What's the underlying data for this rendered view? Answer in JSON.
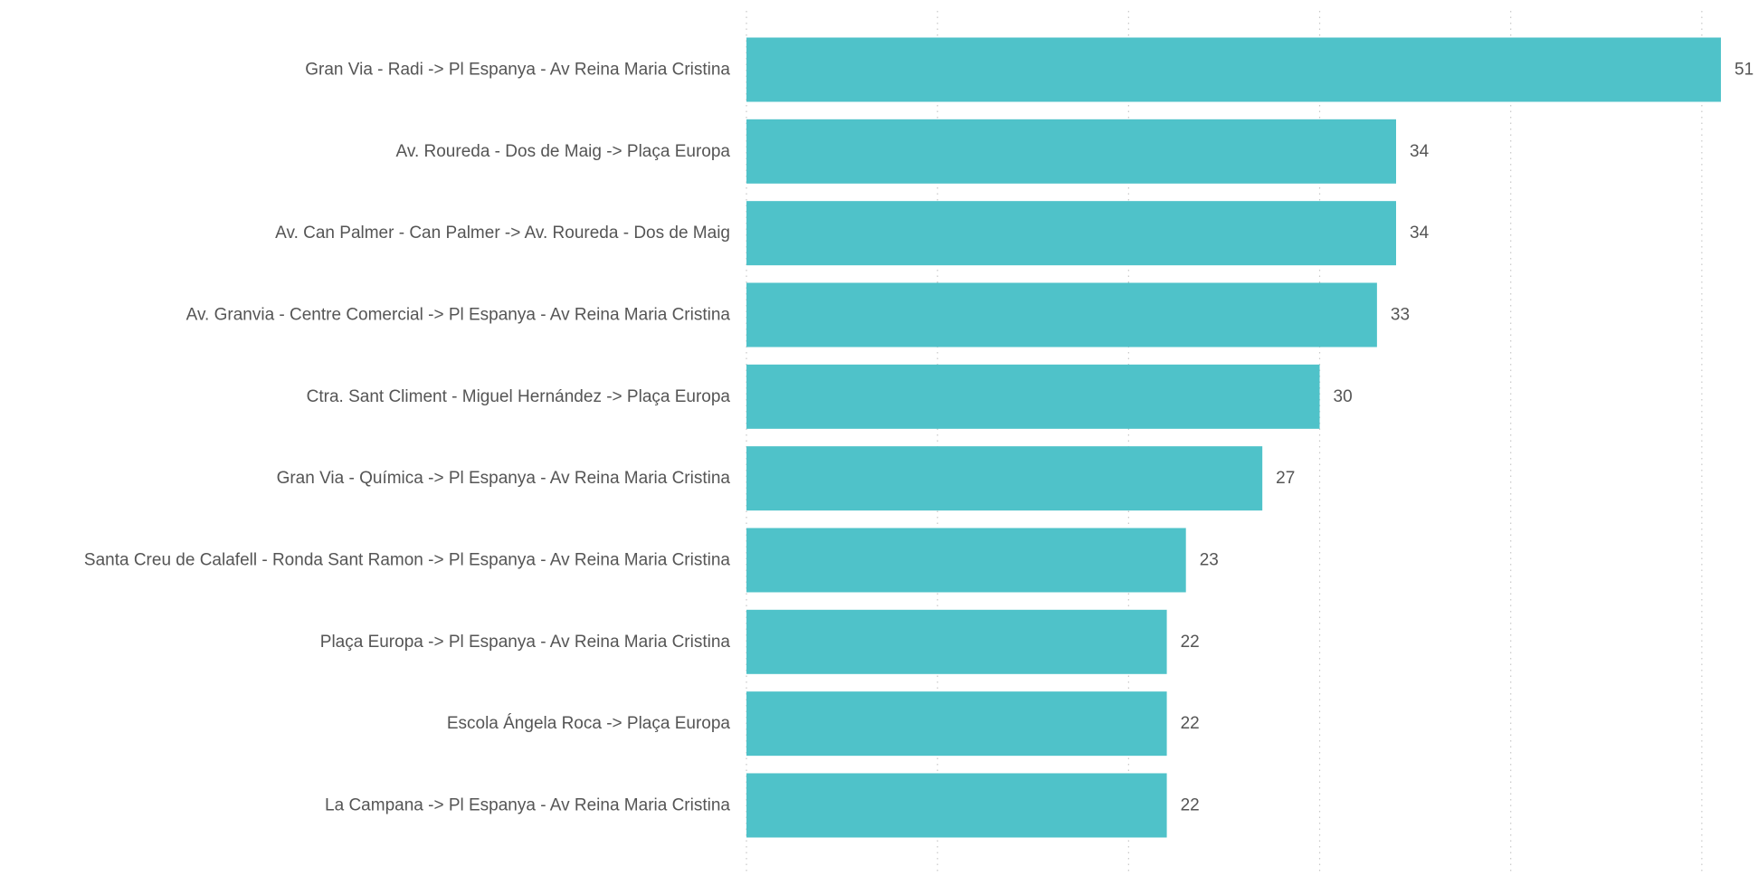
{
  "chart_data": {
    "type": "bar",
    "orientation": "horizontal",
    "categories": [
      "Gran Via - Radi -> Pl Espanya - Av Reina Maria Cristina",
      "Av. Roureda - Dos de Maig -> Plaça Europa",
      "Av. Can Palmer - Can Palmer -> Av. Roureda - Dos de Maig",
      "Av. Granvia - Centre Comercial -> Pl Espanya - Av Reina Maria Cristina",
      "Ctra. Sant Climent - Miguel Hernández -> Plaça Europa",
      "Gran Via - Química -> Pl Espanya - Av Reina Maria Cristina",
      "Santa Creu de Calafell - Ronda Sant Ramon -> Pl Espanya - Av Reina Maria Cristina",
      "Plaça Europa -> Pl Espanya - Av Reina Maria Cristina",
      "Escola Ángela Roca -> Plaça Europa",
      "La Campana -> Pl Espanya - Av Reina Maria Cristina"
    ],
    "values": [
      51,
      34,
      34,
      33,
      30,
      27,
      23,
      22,
      22,
      22
    ],
    "xlim": [
      0,
      51
    ],
    "grid": true,
    "data_labels": true,
    "bar_color": "#4fc2c9",
    "label_color": "#555555",
    "grid_color": "#c8c8c8"
  }
}
